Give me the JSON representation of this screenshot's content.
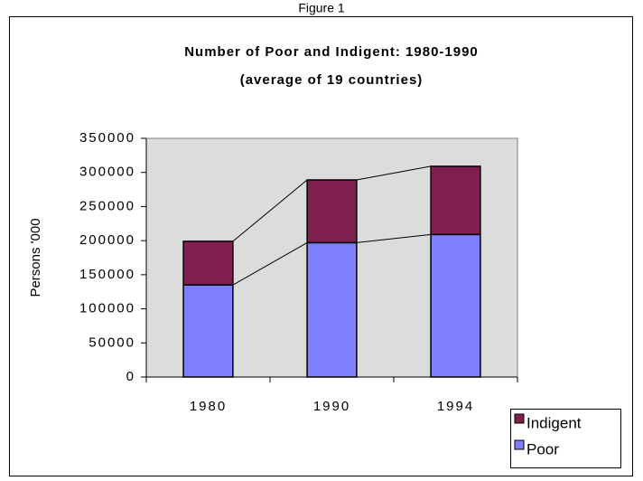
{
  "caption": "Figure 1",
  "chart_data": {
    "type": "stacked_bar",
    "title": "Number of Poor and Indigent: 1980-1990",
    "subtitle": "(average of 19 countries)",
    "y_label": "Persons '000",
    "categories": [
      "1980",
      "1990",
      "1994"
    ],
    "series": [
      {
        "name": "Poor",
        "color": "#8080ff",
        "values": [
          135000,
          197000,
          209000
        ]
      },
      {
        "name": "Indigent",
        "color": "#802050",
        "values": [
          64000,
          92000,
          100000
        ]
      }
    ],
    "ylim": [
      0,
      350000
    ],
    "yticks": [
      0,
      50000,
      100000,
      150000,
      200000,
      250000,
      300000,
      350000
    ],
    "grid": false,
    "series_lines": true,
    "legend": "bottom-right"
  }
}
